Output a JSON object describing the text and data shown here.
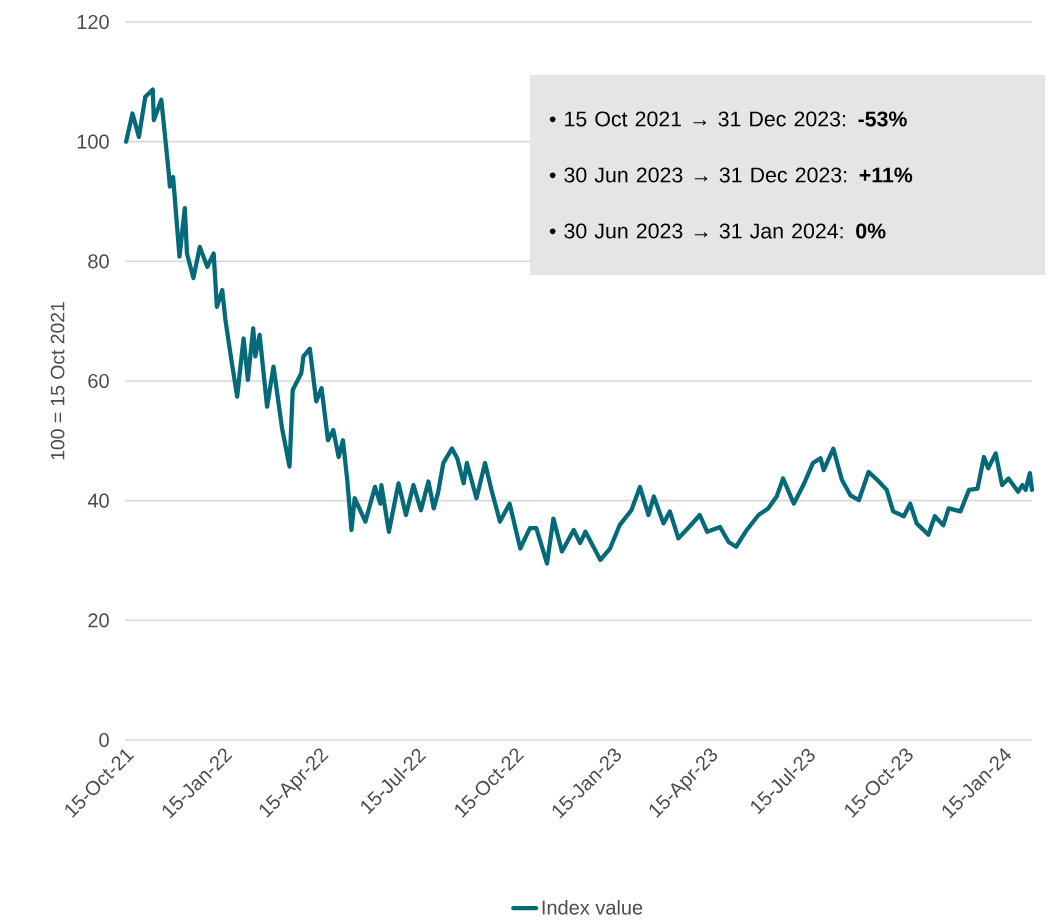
{
  "chart_data": {
    "type": "line",
    "ylabel": "100 = 15 Oct 2021",
    "xlim": [
      "2021-10-15",
      "2024-02-11"
    ],
    "ylim": [
      0,
      120
    ],
    "yticks": [
      0,
      20,
      40,
      60,
      80,
      100,
      120
    ],
    "xticks": [
      {
        "value": "2021-10-15",
        "label": "15-Oct-21"
      },
      {
        "value": "2022-01-15",
        "label": "15-Jan-22"
      },
      {
        "value": "2022-04-15",
        "label": "15-Apr-22"
      },
      {
        "value": "2022-07-15",
        "label": "15-Jul-22"
      },
      {
        "value": "2022-10-15",
        "label": "15-Oct-22"
      },
      {
        "value": "2023-01-15",
        "label": "15-Jan-23"
      },
      {
        "value": "2023-04-15",
        "label": "15-Apr-23"
      },
      {
        "value": "2023-07-15",
        "label": "15-Jul-23"
      },
      {
        "value": "2023-10-15",
        "label": "15-Oct-23"
      },
      {
        "value": "2024-01-15",
        "label": "15-Jan-24"
      }
    ],
    "grid": "y",
    "legend": "bottom",
    "marker": "none",
    "line_style": "solid",
    "annotations": [
      "•   15 Oct 2021 → 31 Dec 2023: **-53%**",
      "•   30 Jun 2023 → 31 Dec 2023: **+11%**",
      "•   30 Jun 2023 → 31 Jan 2024: **0%**"
    ],
    "series": [
      {
        "name": "Index value",
        "color": "#046a7a",
        "x": [
          "2021-10-16",
          "2021-10-22",
          "2021-10-28",
          "2021-11-03",
          "2021-11-10",
          "2021-11-11",
          "2021-11-18",
          "2021-11-25",
          "2021-11-26",
          "2021-11-29",
          "2021-12-05",
          "2021-12-10",
          "2021-12-12",
          "2021-12-18",
          "2021-12-24",
          "2021-12-31",
          "2022-01-06",
          "2022-01-09",
          "2022-01-14",
          "2022-01-17",
          "2022-01-23",
          "2022-01-28",
          "2022-02-03",
          "2022-02-07",
          "2022-02-12",
          "2022-02-14",
          "2022-02-18",
          "2022-02-25",
          "2022-03-03",
          "2022-03-11",
          "2022-03-18",
          "2022-03-21",
          "2022-03-29",
          "2022-03-31",
          "2022-04-06",
          "2022-04-12",
          "2022-04-17",
          "2022-04-23",
          "2022-04-28",
          "2022-05-03",
          "2022-05-07",
          "2022-05-11",
          "2022-05-15",
          "2022-05-18",
          "2022-05-28",
          "2022-06-06",
          "2022-06-11",
          "2022-06-12",
          "2022-06-19",
          "2022-06-28",
          "2022-07-05",
          "2022-07-12",
          "2022-07-19",
          "2022-07-26",
          "2022-07-31",
          "2022-08-04",
          "2022-08-09",
          "2022-08-17",
          "2022-08-22",
          "2022-08-28",
          "2022-08-31",
          "2022-09-09",
          "2022-09-17",
          "2022-09-23",
          "2022-10-01",
          "2022-10-10",
          "2022-10-20",
          "2022-10-29",
          "2022-11-04",
          "2022-11-14",
          "2022-11-20",
          "2022-11-28",
          "2022-12-09",
          "2022-12-15",
          "2022-12-20",
          "2023-01-03",
          "2023-01-12",
          "2023-01-21",
          "2023-02-01",
          "2023-02-09",
          "2023-02-17",
          "2023-02-22",
          "2023-03-03",
          "2023-03-09",
          "2023-03-17",
          "2023-03-27",
          "2023-04-06",
          "2023-04-13",
          "2023-04-25",
          "2023-05-03",
          "2023-05-10",
          "2023-05-20",
          "2023-05-31",
          "2023-06-09",
          "2023-06-17",
          "2023-06-23",
          "2023-07-03",
          "2023-07-12",
          "2023-07-21",
          "2023-07-28",
          "2023-07-31",
          "2023-08-09",
          "2023-08-17",
          "2023-08-25",
          "2023-09-02",
          "2023-09-11",
          "2023-09-19",
          "2023-09-28",
          "2023-10-04",
          "2023-10-14",
          "2023-10-20",
          "2023-10-26",
          "2023-11-06",
          "2023-11-12",
          "2023-11-20",
          "2023-11-25",
          "2023-12-06",
          "2023-12-14",
          "2023-12-22",
          "2023-12-28",
          "2024-01-01",
          "2024-01-08",
          "2024-01-14",
          "2024-01-20",
          "2024-01-29",
          "2024-02-02",
          "2024-02-05",
          "2024-02-09",
          "2024-02-11"
        ],
        "values": [
          100.0,
          104.7,
          100.8,
          107.5,
          108.7,
          103.6,
          107.0,
          94.7,
          92.5,
          94.1,
          80.8,
          88.9,
          81.3,
          77.2,
          82.4,
          79.1,
          81.3,
          72.4,
          75.2,
          70.2,
          63.0,
          57.4,
          67.1,
          60.2,
          68.8,
          64.1,
          67.7,
          55.7,
          62.4,
          52.1,
          45.7,
          58.5,
          61.3,
          64.1,
          65.4,
          56.6,
          58.8,
          50.1,
          51.8,
          47.3,
          50.1,
          43.5,
          35.1,
          40.4,
          36.5,
          42.3,
          39.5,
          42.6,
          34.8,
          42.9,
          37.6,
          42.6,
          38.4,
          43.2,
          38.7,
          41.3,
          46.3,
          48.7,
          47.1,
          42.9,
          46.3,
          40.4,
          46.3,
          41.8,
          36.5,
          39.5,
          32.0,
          35.4,
          35.4,
          29.5,
          37.0,
          31.5,
          35.1,
          32.9,
          34.8,
          30.1,
          32.0,
          35.9,
          38.4,
          42.3,
          37.6,
          40.7,
          36.2,
          38.2,
          33.7,
          35.6,
          37.6,
          34.8,
          35.6,
          33.1,
          32.3,
          35.1,
          37.6,
          38.7,
          40.7,
          43.7,
          39.5,
          42.6,
          46.3,
          47.1,
          45.1,
          48.7,
          43.5,
          40.9,
          40.1,
          44.8,
          43.5,
          41.8,
          38.2,
          37.4,
          39.5,
          36.2,
          34.3,
          37.4,
          35.9,
          38.7,
          38.2,
          41.8,
          42.0,
          47.3,
          45.4,
          47.9,
          42.6,
          43.7,
          41.5,
          42.6,
          41.8,
          44.6,
          41.8
        ]
      }
    ]
  }
}
